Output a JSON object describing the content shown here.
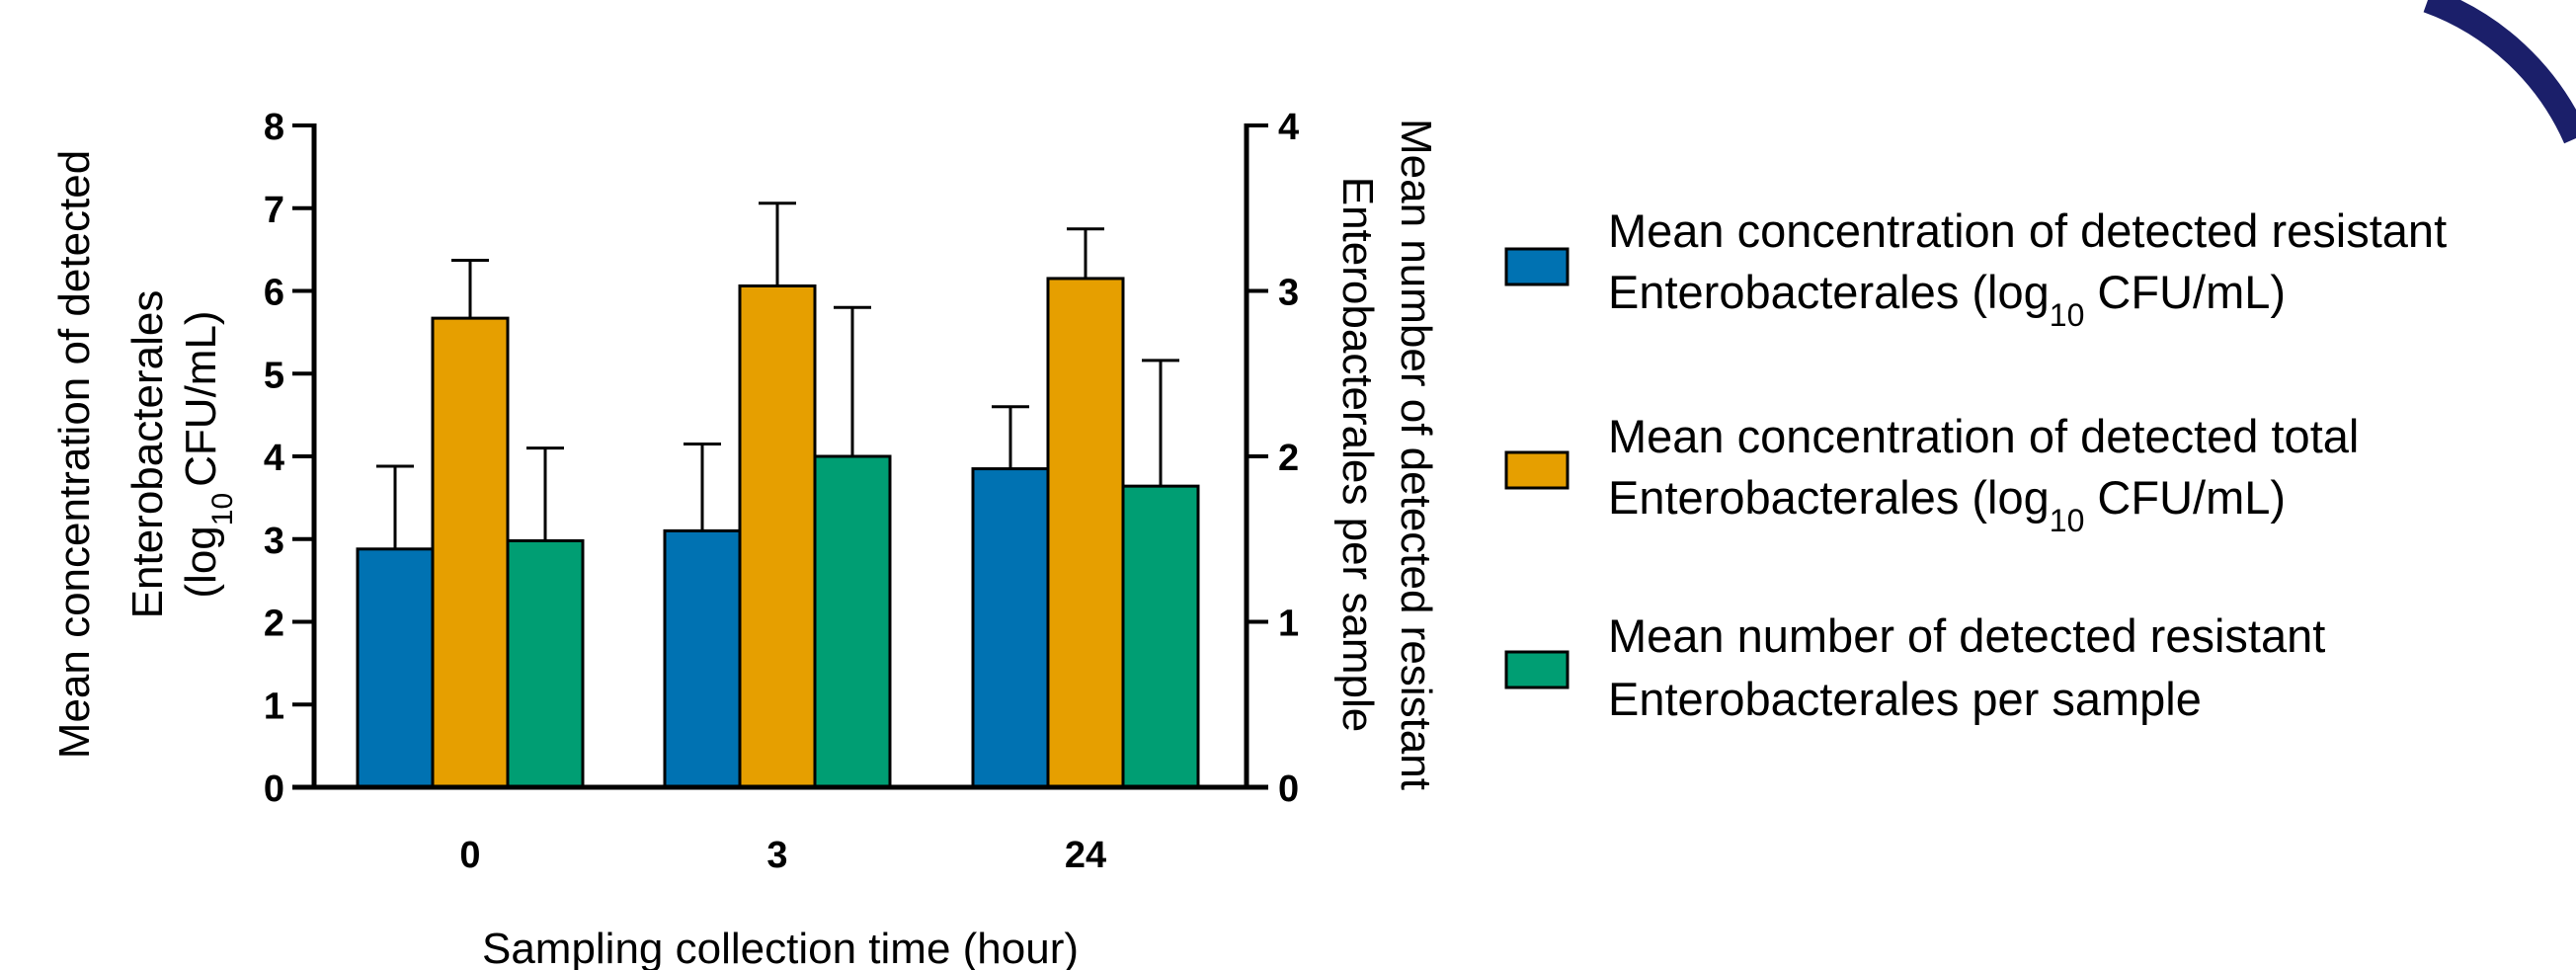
{
  "chart_data": {
    "type": "bar",
    "categories": [
      "0",
      "3",
      "24"
    ],
    "xlabel": "Sampling collection time (hour)",
    "ylabel_left": {
      "lines": [
        "Mean concentration of detected",
        "Enterobacterales",
        "(log",
        "10",
        "CFU/mL)"
      ]
    },
    "ylabel_right": {
      "lines": [
        "Mean number of detected resistant",
        "Enterobacterales per sample"
      ]
    },
    "ylim_left": [
      0,
      8
    ],
    "ylim_right": [
      0,
      4
    ],
    "yticks_left": [
      "0",
      "1",
      "2",
      "3",
      "4",
      "5",
      "6",
      "7",
      "8"
    ],
    "yticks_right": [
      "0",
      "1",
      "2",
      "3",
      "4"
    ],
    "grid": false,
    "legend_position": "right",
    "series": [
      {
        "legend_line1": "Mean concentration of detected resistant",
        "legend_line2_pre": "Enterobacterales (log",
        "legend_line2_sub": "10",
        "legend_line2_post": " CFU/mL)",
        "axis": "left",
        "color": "#0072B2",
        "values": [
          2.88,
          3.1,
          3.85
        ],
        "errors": [
          1.0,
          1.05,
          0.75
        ]
      },
      {
        "legend_line1": "Mean concentration of detected total",
        "legend_line2_pre": "Enterobacterales (log",
        "legend_line2_sub": "10",
        "legend_line2_post": " CFU/mL)",
        "axis": "left",
        "color": "#E69F00",
        "values": [
          5.67,
          6.06,
          6.15
        ],
        "errors": [
          0.7,
          1.0,
          0.6
        ]
      },
      {
        "legend_line1": "Mean number of detected resistant",
        "legend_line2_pre": "Enterobacterales per sample",
        "legend_line2_sub": "",
        "legend_line2_post": "",
        "axis": "right",
        "color": "#009E73",
        "values": [
          1.49,
          2.0,
          1.82
        ],
        "errors": [
          0.56,
          0.9,
          0.76
        ]
      }
    ]
  }
}
